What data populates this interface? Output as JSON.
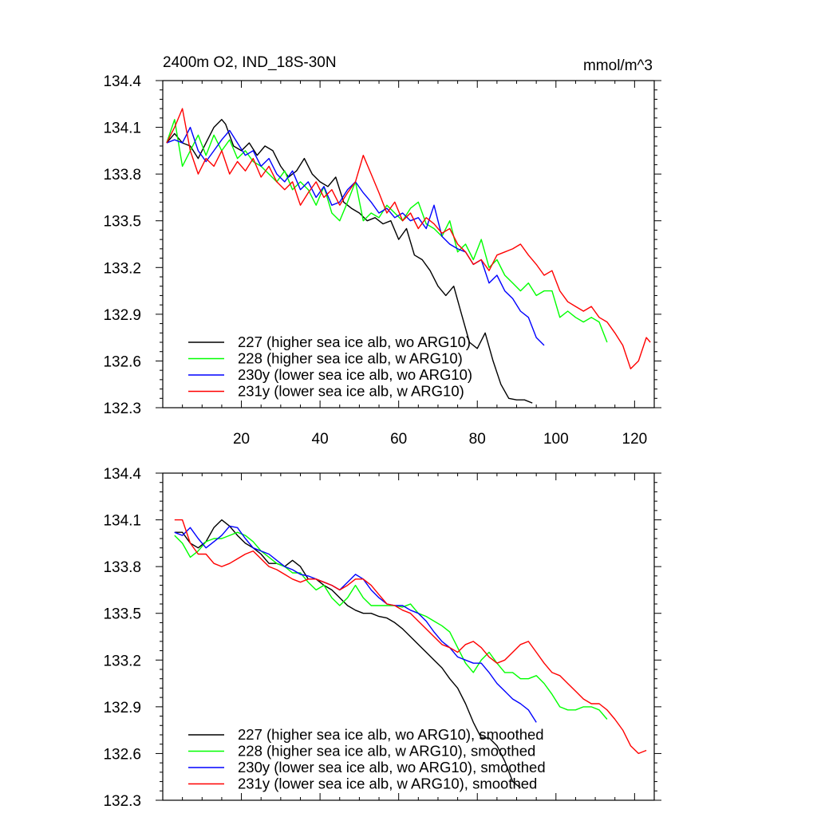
{
  "colors": {
    "s227": "#000000",
    "s228": "#00ff00",
    "s230y": "#0000ff",
    "s231y": "#ff0000",
    "axis": "#000000"
  },
  "chart_data": [
    {
      "type": "line",
      "title": "2400m O2, IND_18S-30N",
      "units": "mmol/m^3",
      "xlim": [
        0,
        125
      ],
      "ylim": [
        132.3,
        134.4
      ],
      "xticks": [
        20,
        40,
        60,
        80,
        100,
        120
      ],
      "xtick_labels": [
        "20",
        "40",
        "60",
        "80",
        "100",
        "120"
      ],
      "yticks": [
        132.3,
        132.6,
        132.9,
        133.2,
        133.5,
        133.8,
        134.1,
        134.4
      ],
      "ytick_labels": [
        "132.3",
        "132.6",
        "132.9",
        "133.2",
        "133.5",
        "133.8",
        "134.1",
        "134.4"
      ],
      "legend_position": "bottom-left",
      "series": [
        {
          "name": "227 (higher sea ice alb, wo ARG10)",
          "color_key": "s227",
          "x": [
            1,
            3,
            5,
            7,
            9,
            11,
            13,
            15,
            16,
            18,
            20,
            22,
            24,
            26,
            28,
            30,
            32,
            34,
            36,
            38,
            40,
            42,
            44,
            46,
            48,
            50,
            52,
            54,
            56,
            58,
            60,
            62,
            64,
            66,
            68,
            70,
            72,
            74,
            76,
            78,
            80,
            82,
            84,
            86,
            88,
            90,
            92,
            94
          ],
          "y": [
            134.0,
            134.06,
            134.0,
            133.98,
            133.9,
            134.0,
            134.1,
            134.15,
            134.12,
            133.98,
            133.95,
            134.0,
            133.92,
            133.98,
            133.95,
            133.85,
            133.78,
            133.82,
            133.9,
            133.8,
            133.75,
            133.72,
            133.78,
            133.62,
            133.58,
            133.55,
            133.5,
            133.52,
            133.48,
            133.5,
            133.38,
            133.45,
            133.28,
            133.25,
            133.18,
            133.08,
            133.02,
            133.08,
            132.9,
            132.72,
            132.68,
            132.78,
            132.6,
            132.45,
            132.36,
            132.35,
            132.35,
            132.33
          ]
        },
        {
          "name": "228 (higher sea ice alb, w ARG10)",
          "color_key": "s228",
          "x": [
            1,
            3,
            5,
            7,
            9,
            11,
            13,
            15,
            17,
            19,
            21,
            23,
            25,
            27,
            29,
            31,
            33,
            35,
            37,
            39,
            41,
            43,
            45,
            47,
            49,
            51,
            53,
            55,
            57,
            59,
            61,
            63,
            65,
            67,
            69,
            71,
            73,
            75,
            77,
            79,
            81,
            83,
            85,
            87,
            89,
            91,
            93,
            95,
            97,
            99,
            101,
            103,
            105,
            107,
            109,
            111,
            113
          ],
          "y": [
            134.0,
            134.15,
            133.85,
            133.95,
            134.05,
            133.92,
            134.05,
            133.95,
            134.02,
            133.9,
            133.95,
            133.88,
            133.85,
            133.8,
            133.75,
            133.82,
            133.7,
            133.75,
            133.7,
            133.6,
            133.72,
            133.55,
            133.5,
            133.62,
            133.75,
            133.5,
            133.55,
            133.52,
            133.6,
            133.55,
            133.5,
            133.58,
            133.62,
            133.48,
            133.45,
            133.4,
            133.5,
            133.3,
            133.35,
            133.25,
            133.38,
            133.2,
            133.25,
            133.15,
            133.1,
            133.05,
            133.1,
            133.02,
            133.05,
            133.05,
            132.88,
            132.92,
            132.88,
            132.85,
            132.88,
            132.85,
            132.72
          ]
        },
        {
          "name": "230y (lower sea ice alb, wo ARG10)",
          "color_key": "s230y",
          "x": [
            1,
            3,
            5,
            7,
            9,
            11,
            13,
            15,
            17,
            19,
            21,
            23,
            25,
            27,
            29,
            31,
            33,
            35,
            37,
            39,
            41,
            43,
            45,
            47,
            49,
            51,
            53,
            55,
            57,
            59,
            61,
            63,
            65,
            67,
            69,
            71,
            73,
            75,
            77,
            79,
            81,
            83,
            85,
            87,
            89,
            91,
            93,
            95,
            97
          ],
          "y": [
            134.0,
            134.02,
            134.0,
            134.1,
            133.95,
            133.88,
            133.95,
            134.02,
            134.08,
            134.0,
            133.92,
            133.95,
            133.85,
            133.9,
            133.8,
            133.75,
            133.82,
            133.7,
            133.75,
            133.65,
            133.72,
            133.6,
            133.62,
            133.7,
            133.75,
            133.68,
            133.62,
            133.55,
            133.58,
            133.52,
            133.55,
            133.5,
            133.52,
            133.45,
            133.6,
            133.4,
            133.35,
            133.32,
            133.3,
            133.22,
            133.25,
            133.1,
            133.15,
            133.05,
            133.0,
            132.92,
            132.88,
            132.75,
            132.7
          ]
        },
        {
          "name": "231y (lower sea ice alb, w ARG10)",
          "color_key": "s231y",
          "x": [
            1,
            3,
            5,
            7,
            9,
            11,
            13,
            15,
            17,
            19,
            21,
            23,
            25,
            27,
            29,
            31,
            33,
            35,
            37,
            39,
            41,
            43,
            45,
            47,
            49,
            51,
            53,
            55,
            57,
            59,
            61,
            63,
            65,
            67,
            69,
            71,
            73,
            75,
            77,
            79,
            81,
            83,
            85,
            87,
            89,
            91,
            93,
            95,
            97,
            99,
            101,
            103,
            105,
            107,
            109,
            111,
            113,
            115,
            117,
            119,
            121,
            123,
            124
          ],
          "y": [
            134.0,
            134.1,
            134.22,
            133.95,
            133.8,
            133.9,
            133.85,
            133.95,
            133.8,
            133.88,
            133.82,
            133.9,
            133.78,
            133.85,
            133.75,
            133.7,
            133.75,
            133.6,
            133.68,
            133.75,
            133.65,
            133.7,
            133.6,
            133.68,
            133.75,
            133.92,
            133.8,
            133.68,
            133.55,
            133.62,
            133.5,
            133.55,
            133.45,
            133.52,
            133.48,
            133.42,
            133.45,
            133.35,
            133.3,
            133.22,
            133.25,
            133.18,
            133.28,
            133.3,
            133.32,
            133.35,
            133.28,
            133.22,
            133.15,
            133.18,
            133.05,
            132.98,
            132.95,
            132.92,
            132.95,
            132.88,
            132.85,
            132.78,
            132.7,
            132.55,
            132.6,
            132.75,
            132.72
          ]
        }
      ]
    },
    {
      "type": "line",
      "title": "",
      "units": "",
      "xlim": [
        0,
        125
      ],
      "ylim": [
        132.3,
        134.4
      ],
      "xticks": [
        20,
        40,
        60,
        80,
        100,
        120
      ],
      "xtick_labels": [],
      "yticks": [
        132.3,
        132.6,
        132.9,
        133.2,
        133.5,
        133.8,
        134.1,
        134.4
      ],
      "ytick_labels": [
        "132.3",
        "132.6",
        "132.9",
        "133.2",
        "133.5",
        "133.8",
        "134.1",
        "134.4"
      ],
      "legend_position": "bottom-left",
      "series": [
        {
          "name": "227 (higher sea ice alb, wo ARG10), smoothed",
          "color_key": "s227",
          "x": [
            3,
            5,
            7,
            9,
            11,
            13,
            15,
            17,
            19,
            21,
            23,
            25,
            27,
            29,
            31,
            33,
            35,
            37,
            39,
            41,
            43,
            45,
            47,
            49,
            51,
            53,
            55,
            57,
            59,
            61,
            63,
            65,
            67,
            69,
            71,
            73,
            75,
            77,
            79,
            81,
            83,
            85,
            87,
            89,
            91
          ],
          "y": [
            134.02,
            134.02,
            133.95,
            133.92,
            133.96,
            134.05,
            134.1,
            134.06,
            134.0,
            133.95,
            133.92,
            133.88,
            133.82,
            133.82,
            133.8,
            133.84,
            133.8,
            133.72,
            133.72,
            133.68,
            133.65,
            133.6,
            133.55,
            133.52,
            133.5,
            133.5,
            133.48,
            133.47,
            133.44,
            133.4,
            133.35,
            133.3,
            133.25,
            133.2,
            133.15,
            133.08,
            133.02,
            132.92,
            132.8,
            132.7,
            132.7,
            132.65,
            132.55,
            132.42,
            132.38
          ]
        },
        {
          "name": "228 (higher sea ice alb, w ARG10), smoothed",
          "color_key": "s228",
          "x": [
            3,
            5,
            7,
            9,
            11,
            13,
            15,
            17,
            19,
            21,
            23,
            25,
            27,
            29,
            31,
            33,
            35,
            37,
            39,
            41,
            43,
            45,
            47,
            49,
            51,
            53,
            55,
            57,
            59,
            61,
            63,
            65,
            67,
            69,
            71,
            73,
            75,
            77,
            79,
            81,
            83,
            85,
            87,
            89,
            91,
            93,
            95,
            97,
            99,
            101,
            103,
            105,
            107,
            109,
            111,
            113
          ],
          "y": [
            134.0,
            133.95,
            133.86,
            133.9,
            133.96,
            133.98,
            133.98,
            134.0,
            134.02,
            134.0,
            133.96,
            133.9,
            133.86,
            133.82,
            133.8,
            133.76,
            133.76,
            133.7,
            133.65,
            133.68,
            133.6,
            133.55,
            133.6,
            133.68,
            133.6,
            133.55,
            133.55,
            133.55,
            133.55,
            133.54,
            133.56,
            133.5,
            133.48,
            133.45,
            133.42,
            133.38,
            133.28,
            133.18,
            133.12,
            133.2,
            133.25,
            133.18,
            133.12,
            133.12,
            133.08,
            133.08,
            133.1,
            133.05,
            132.98,
            132.9,
            132.88,
            132.88,
            132.9,
            132.9,
            132.88,
            132.82
          ]
        },
        {
          "name": "230y (lower sea ice alb, wo ARG10), smoothed",
          "color_key": "s230y",
          "x": [
            3,
            5,
            7,
            9,
            11,
            13,
            15,
            17,
            19,
            21,
            23,
            25,
            27,
            29,
            31,
            33,
            35,
            37,
            39,
            41,
            43,
            45,
            47,
            49,
            51,
            53,
            55,
            57,
            59,
            61,
            63,
            65,
            67,
            69,
            71,
            73,
            75,
            77,
            79,
            81,
            83,
            85,
            87,
            89,
            91,
            93,
            95
          ],
          "y": [
            134.02,
            134.0,
            134.05,
            133.98,
            133.92,
            133.96,
            134.0,
            134.06,
            134.05,
            133.98,
            133.92,
            133.9,
            133.88,
            133.84,
            133.8,
            133.78,
            133.75,
            133.74,
            133.72,
            133.7,
            133.68,
            133.65,
            133.7,
            133.75,
            133.72,
            133.65,
            133.6,
            133.56,
            133.55,
            133.55,
            133.52,
            133.5,
            133.45,
            133.38,
            133.32,
            133.28,
            133.22,
            133.2,
            133.18,
            133.18,
            133.12,
            133.05,
            133.0,
            132.95,
            132.92,
            132.88,
            132.8
          ]
        },
        {
          "name": "231y (lower sea ice alb, w ARG10), smoothed",
          "color_key": "s231y",
          "x": [
            3,
            5,
            7,
            9,
            11,
            13,
            15,
            17,
            19,
            21,
            23,
            25,
            27,
            29,
            31,
            33,
            35,
            37,
            39,
            41,
            43,
            45,
            47,
            49,
            51,
            53,
            55,
            57,
            59,
            61,
            63,
            65,
            67,
            69,
            71,
            73,
            75,
            77,
            79,
            81,
            83,
            85,
            87,
            89,
            91,
            93,
            95,
            97,
            99,
            101,
            103,
            105,
            107,
            109,
            111,
            113,
            115,
            117,
            119,
            121,
            123
          ],
          "y": [
            134.1,
            134.1,
            133.95,
            133.88,
            133.88,
            133.82,
            133.8,
            133.82,
            133.85,
            133.88,
            133.9,
            133.85,
            133.8,
            133.78,
            133.75,
            133.72,
            133.7,
            133.72,
            133.72,
            133.7,
            133.68,
            133.65,
            133.68,
            133.72,
            133.72,
            133.68,
            133.62,
            133.56,
            133.55,
            133.52,
            133.5,
            133.45,
            133.4,
            133.35,
            133.3,
            133.28,
            133.25,
            133.3,
            133.32,
            133.28,
            133.22,
            133.18,
            133.2,
            133.25,
            133.3,
            133.32,
            133.25,
            133.18,
            133.12,
            133.1,
            133.05,
            133.0,
            132.95,
            132.92,
            132.92,
            132.88,
            132.82,
            132.75,
            132.65,
            132.6,
            132.62
          ]
        }
      ]
    }
  ]
}
